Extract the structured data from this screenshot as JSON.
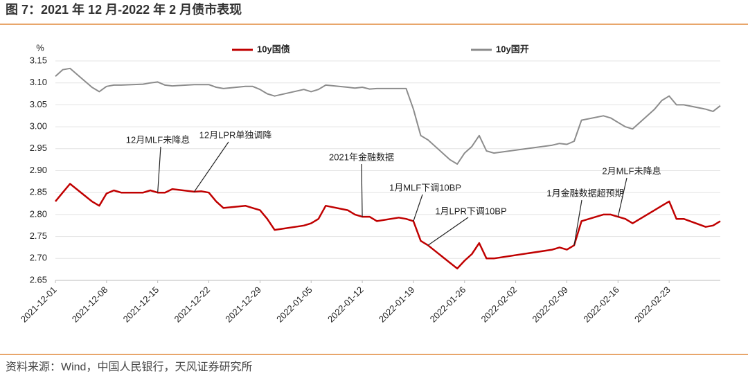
{
  "chart_data": {
    "type": "line",
    "title": "图 7：2021 年 12 月-2022 年 2 月债市表现",
    "y_unit": "%",
    "source": "资料来源：Wind，中国人民银行，天风证券研究所",
    "x": [
      "2021-12-01",
      "2021-12-02",
      "2021-12-03",
      "2021-12-06",
      "2021-12-07",
      "2021-12-08",
      "2021-12-09",
      "2021-12-10",
      "2021-12-13",
      "2021-12-14",
      "2021-12-15",
      "2021-12-16",
      "2021-12-17",
      "2021-12-20",
      "2021-12-21",
      "2021-12-22",
      "2021-12-23",
      "2021-12-24",
      "2021-12-27",
      "2021-12-28",
      "2021-12-29",
      "2021-12-30",
      "2021-12-31",
      "2022-01-04",
      "2022-01-05",
      "2022-01-06",
      "2022-01-07",
      "2022-01-10",
      "2022-01-11",
      "2022-01-12",
      "2022-01-13",
      "2022-01-14",
      "2022-01-17",
      "2022-01-18",
      "2022-01-19",
      "2022-01-20",
      "2022-01-21",
      "2022-01-24",
      "2022-01-25",
      "2022-01-26",
      "2022-01-27",
      "2022-01-28",
      "2022-01-29",
      "2022-01-30",
      "2022-02-07",
      "2022-02-08",
      "2022-02-09",
      "2022-02-10",
      "2022-02-11",
      "2022-02-14",
      "2022-02-15",
      "2022-02-16",
      "2022-02-17",
      "2022-02-18",
      "2022-02-21",
      "2022-02-22",
      "2022-02-23",
      "2022-02-24",
      "2022-02-25",
      "2022-02-28",
      "2022-03-01",
      "2022-03-02"
    ],
    "series": [
      {
        "name": "10y国债",
        "color": "#c00000",
        "values": [
          2.83,
          2.85,
          2.87,
          2.83,
          2.82,
          2.848,
          2.855,
          2.85,
          2.85,
          2.855,
          2.85,
          2.85,
          2.858,
          2.852,
          2.853,
          2.85,
          2.83,
          2.815,
          2.82,
          2.815,
          2.81,
          2.79,
          2.765,
          2.775,
          2.78,
          2.79,
          2.82,
          2.81,
          2.8,
          2.795,
          2.795,
          2.785,
          2.793,
          2.79,
          2.785,
          2.74,
          2.73,
          2.69,
          2.677,
          2.695,
          2.71,
          2.735,
          2.7,
          2.7,
          2.72,
          2.725,
          2.72,
          2.73,
          2.785,
          2.8,
          2.8,
          2.795,
          2.79,
          2.78,
          2.81,
          2.82,
          2.83,
          2.79,
          2.79,
          2.772,
          2.775,
          2.785
        ]
      },
      {
        "name": "10y国开",
        "color": "#8c8c8c",
        "values": [
          3.115,
          3.13,
          3.133,
          3.09,
          3.08,
          3.092,
          3.095,
          3.095,
          3.097,
          3.1,
          3.102,
          3.095,
          3.093,
          3.096,
          3.096,
          3.096,
          3.09,
          3.087,
          3.092,
          3.092,
          3.085,
          3.075,
          3.07,
          3.085,
          3.08,
          3.085,
          3.095,
          3.09,
          3.088,
          3.09,
          3.086,
          3.087,
          3.087,
          3.087,
          3.04,
          2.98,
          2.97,
          2.925,
          2.915,
          2.94,
          2.955,
          2.98,
          2.945,
          2.94,
          2.958,
          2.962,
          2.96,
          2.967,
          3.015,
          3.025,
          3.02,
          3.01,
          3.0,
          2.995,
          3.04,
          3.06,
          3.07,
          3.05,
          3.05,
          3.04,
          3.035,
          3.048
        ]
      }
    ],
    "annotations": [
      {
        "text": "12月MLF未降息",
        "x": "2021-12-15"
      },
      {
        "text": "12月LPR单独调降",
        "x": "2021-12-20"
      },
      {
        "text": "2021年金融数据",
        "x": "2022-01-12"
      },
      {
        "text": "1月MLF下调10BP",
        "x": "2022-01-19"
      },
      {
        "text": "1月LPR下调10BP",
        "x": "2022-01-21"
      },
      {
        "text": "1月金融数据超预期",
        "x": "2022-02-10"
      },
      {
        "text": "2月MLF未降息",
        "x": "2022-02-16"
      }
    ],
    "xlim": [
      "2021-12-01",
      "2022-03-02"
    ],
    "xticks": [
      "2021-12-01",
      "2021-12-08",
      "2021-12-15",
      "2021-12-22",
      "2021-12-29",
      "2022-01-05",
      "2022-01-12",
      "2022-01-19",
      "2022-01-26",
      "2022-02-02",
      "2022-02-09",
      "2022-02-16",
      "2022-02-23"
    ],
    "ylim": [
      2.65,
      3.15
    ],
    "yticks": [
      2.65,
      {
        "value": 2.7,
        "label": "2.70"
      },
      2.75,
      {
        "value": 2.8,
        "label": "2.80"
      },
      2.85,
      {
        "value": 2.9,
        "label": "2.90"
      },
      2.95,
      {
        "value": 3,
        "label": "3.00"
      },
      3.05,
      {
        "value": 3.1,
        "label": "3.10"
      },
      3.15
    ],
    "grid": true,
    "legend": "top"
  }
}
